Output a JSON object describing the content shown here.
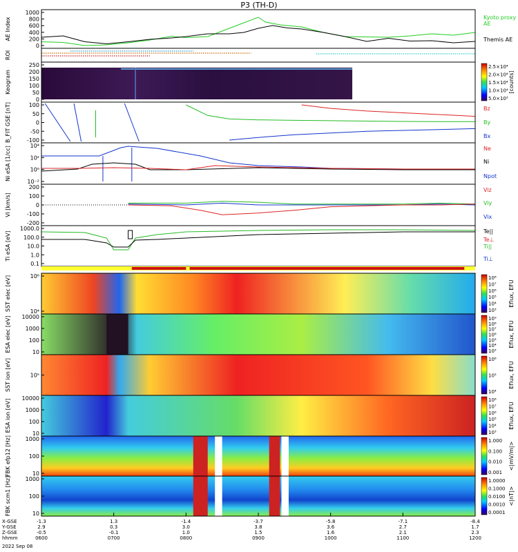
{
  "title": "P3 (TH-D)",
  "colors": {
    "kyoto": "#22cc22",
    "themis": "#000000",
    "red": "#dd2222",
    "green": "#22bb22",
    "blue": "#1133cc",
    "black": "#000000",
    "yellow": "#ffff33",
    "cyan": "#22cccc"
  },
  "chart_data": [
    {
      "type": "line",
      "panel": "ae",
      "ylabel": "AE Index",
      "ylim": [
        0,
        1000
      ],
      "yticks": [
        "1000",
        "800",
        "600",
        "400",
        "200",
        "0"
      ],
      "series": [
        {
          "name": "Kyoto proxy AE",
          "color_key": "kyoto",
          "x": [
            6.0,
            6.3,
            6.6,
            6.9,
            7.2,
            7.5,
            7.8,
            8.0,
            8.3,
            8.6,
            8.8,
            9.0,
            9.1,
            9.3,
            9.6,
            9.9,
            10.2,
            10.5,
            10.8,
            11.1,
            11.4,
            11.7,
            12.0
          ],
          "y": [
            150,
            130,
            40,
            60,
            120,
            200,
            310,
            270,
            300,
            540,
            700,
            860,
            720,
            640,
            580,
            420,
            300,
            290,
            280,
            320,
            380,
            340,
            420
          ]
        },
        {
          "name": "Themis AE",
          "color_key": "themis",
          "x": [
            6.0,
            6.3,
            6.6,
            6.9,
            7.2,
            7.5,
            7.8,
            8.0,
            8.3,
            8.6,
            8.8,
            9.0,
            9.2,
            9.4,
            9.6,
            9.9,
            10.2,
            10.5,
            10.8,
            11.1,
            11.4,
            11.7,
            12.0
          ],
          "y": [
            280,
            320,
            150,
            90,
            150,
            220,
            260,
            300,
            380,
            380,
            420,
            540,
            620,
            550,
            520,
            420,
            300,
            160,
            250,
            170,
            180,
            120,
            160
          ]
        }
      ]
    },
    {
      "type": "line",
      "panel": "roi",
      "ylabel": "ROI",
      "x_segments_hours": [
        [
          6.0,
          8.9
        ],
        [
          6.0,
          7.5
        ],
        [
          6.4,
          8.1
        ],
        [
          9.8,
          12.0
        ]
      ]
    },
    {
      "type": "heatmap",
      "panel": "keogram",
      "ylabel": "Keogram",
      "yticks": [
        "250",
        "200",
        "150",
        "100",
        "50",
        "0"
      ],
      "colorbar_label": "[counts]",
      "colorbar_ticks": [
        "2.5×10⁴",
        "2.0×10⁴",
        "1.5×10⁴",
        "1.0×10⁴",
        "5.0×10³"
      ]
    },
    {
      "type": "line",
      "panel": "bfit",
      "ylabel": "B_FIT GSE [nT]",
      "ylim": [
        -100,
        100
      ],
      "yticks": [
        "100",
        "50",
        "0",
        "-50",
        "-100"
      ],
      "series": [
        {
          "name": "Bz",
          "color_key": "red",
          "x": [
            9.6,
            10.0,
            10.5,
            11.0,
            11.5,
            12.0
          ],
          "y": [
            100,
            80,
            65,
            55,
            45,
            35
          ]
        },
        {
          "name": "By",
          "color_key": "green",
          "x": [
            8.0,
            8.3,
            8.6,
            9.0,
            9.5,
            10.0,
            10.5,
            11.0,
            11.5,
            12.0
          ],
          "y": [
            100,
            40,
            20,
            15,
            12,
            10,
            8,
            6,
            5,
            5
          ]
        },
        {
          "name": "Bx",
          "color_key": "blue",
          "x": [
            8.6,
            9.0,
            9.5,
            10.0,
            10.5,
            11.0,
            11.5,
            12.0
          ],
          "y": [
            -100,
            -85,
            -70,
            -60,
            -50,
            -45,
            -40,
            -35
          ]
        }
      ]
    },
    {
      "type": "line",
      "panel": "ni",
      "ylabel": "Ni eSA [1/cc]",
      "yticks": [
        "10⁴",
        "10²",
        "10⁰",
        "10⁻²"
      ],
      "series": [
        {
          "name": "Ne",
          "color_key": "red"
        },
        {
          "name": "Ni",
          "color_key": "black"
        },
        {
          "name": "Npot",
          "color_key": "blue"
        }
      ]
    },
    {
      "type": "line",
      "panel": "vi",
      "ylabel": "Vi [km/s]",
      "ylim": [
        -200,
        200
      ],
      "yticks": [
        "200",
        "100",
        "0",
        "-100",
        "-200"
      ],
      "series": [
        {
          "name": "Vix",
          "color_key": "blue"
        },
        {
          "name": "Viy",
          "color_key": "green"
        },
        {
          "name": "Viz",
          "color_key": "red"
        }
      ]
    },
    {
      "type": "line",
      "panel": "ti",
      "ylabel": "Ti eSA [eV]",
      "yticks": [
        "1000.0",
        "100.0",
        "10.0",
        "1.0",
        "0.1"
      ],
      "series": [
        {
          "name": "Te||",
          "color_key": "black"
        },
        {
          "name": "Te⊥",
          "color_key": "red"
        },
        {
          "name": "Ti||",
          "color_key": "green"
        },
        {
          "name": "Ti⊥",
          "color_key": "blue"
        }
      ]
    },
    {
      "type": "heatmap",
      "panel": "sst_e",
      "ylabel": "SST elec [eV]",
      "yticks": [
        "10⁶",
        "10⁴"
      ],
      "colorbar_label": "Eflux, EFU",
      "colorbar_ticks": [
        "10⁸",
        "10⁷",
        "10⁶",
        "10⁵",
        "10⁴",
        "10³"
      ]
    },
    {
      "type": "heatmap",
      "panel": "esa_e",
      "ylabel": "ESA elec [eV]",
      "yticks": [
        "10000",
        "1000",
        "100",
        "10"
      ],
      "colorbar_label": "Eflux, EFU",
      "colorbar_ticks": [
        "10⁹",
        "10⁸",
        "10⁷",
        "10⁶",
        "10⁵",
        "10⁴",
        "10³"
      ]
    },
    {
      "type": "heatmap",
      "panel": "sst_i",
      "ylabel": "SST ion [eV]",
      "yticks": [
        "10⁵"
      ],
      "colorbar_label": "Eflux, EFU",
      "colorbar_ticks": [
        "10⁶",
        "10⁵",
        "10⁴"
      ]
    },
    {
      "type": "heatmap",
      "panel": "esa_i",
      "ylabel": "ESA ion [eV]",
      "yticks": [
        "10000",
        "1000",
        "100",
        "10"
      ],
      "colorbar_label": "Eflux, EFU",
      "colorbar_ticks": [
        "10⁸",
        "10⁷",
        "10⁶",
        "10⁵",
        "10⁴",
        "10³"
      ]
    },
    {
      "type": "heatmap",
      "panel": "fbk_e",
      "ylabel": "FBK efp12 [Hz]",
      "yticks": [
        "1000",
        "100",
        "10"
      ],
      "colorbar_label": "<|mV/m|>",
      "colorbar_ticks": [
        "1.000",
        "0.100",
        "0.010",
        "0.001"
      ]
    },
    {
      "type": "heatmap",
      "panel": "fbk_b",
      "ylabel": "FBK scm1 [Hz]",
      "yticks": [
        "1000",
        "100",
        "10"
      ],
      "colorbar_label": "<|nT|>",
      "colorbar_ticks": [
        "1.0000",
        "0.1000",
        "0.0100",
        "0.0010",
        "0.0001"
      ]
    }
  ],
  "x_axis": {
    "row_labels": [
      "X-GSE",
      "Y-GSE",
      "Z-GSE",
      "hhmm"
    ],
    "columns": [
      {
        "hour": 6,
        "values": [
          "-1.3",
          "2.9",
          "-0.5",
          "0600"
        ]
      },
      {
        "hour": 7,
        "values": [
          "1.3",
          "0.3",
          "-0.1",
          "0700"
        ]
      },
      {
        "hour": 8,
        "values": [
          "-1.4",
          "3.0",
          "1.0",
          "0800"
        ]
      },
      {
        "hour": 9,
        "values": [
          "-3.7",
          "3.8",
          "1.5",
          "0900"
        ]
      },
      {
        "hour": 10,
        "values": [
          "-5.8",
          "3.6",
          "1.6",
          "1000"
        ]
      },
      {
        "hour": 11,
        "values": [
          "-7.1",
          "2.7",
          "2.1",
          "1100"
        ]
      },
      {
        "hour": 12,
        "values": [
          "-8.4",
          "1.7",
          "2.3",
          "1200"
        ]
      }
    ],
    "date": "2022 Sep 08"
  }
}
